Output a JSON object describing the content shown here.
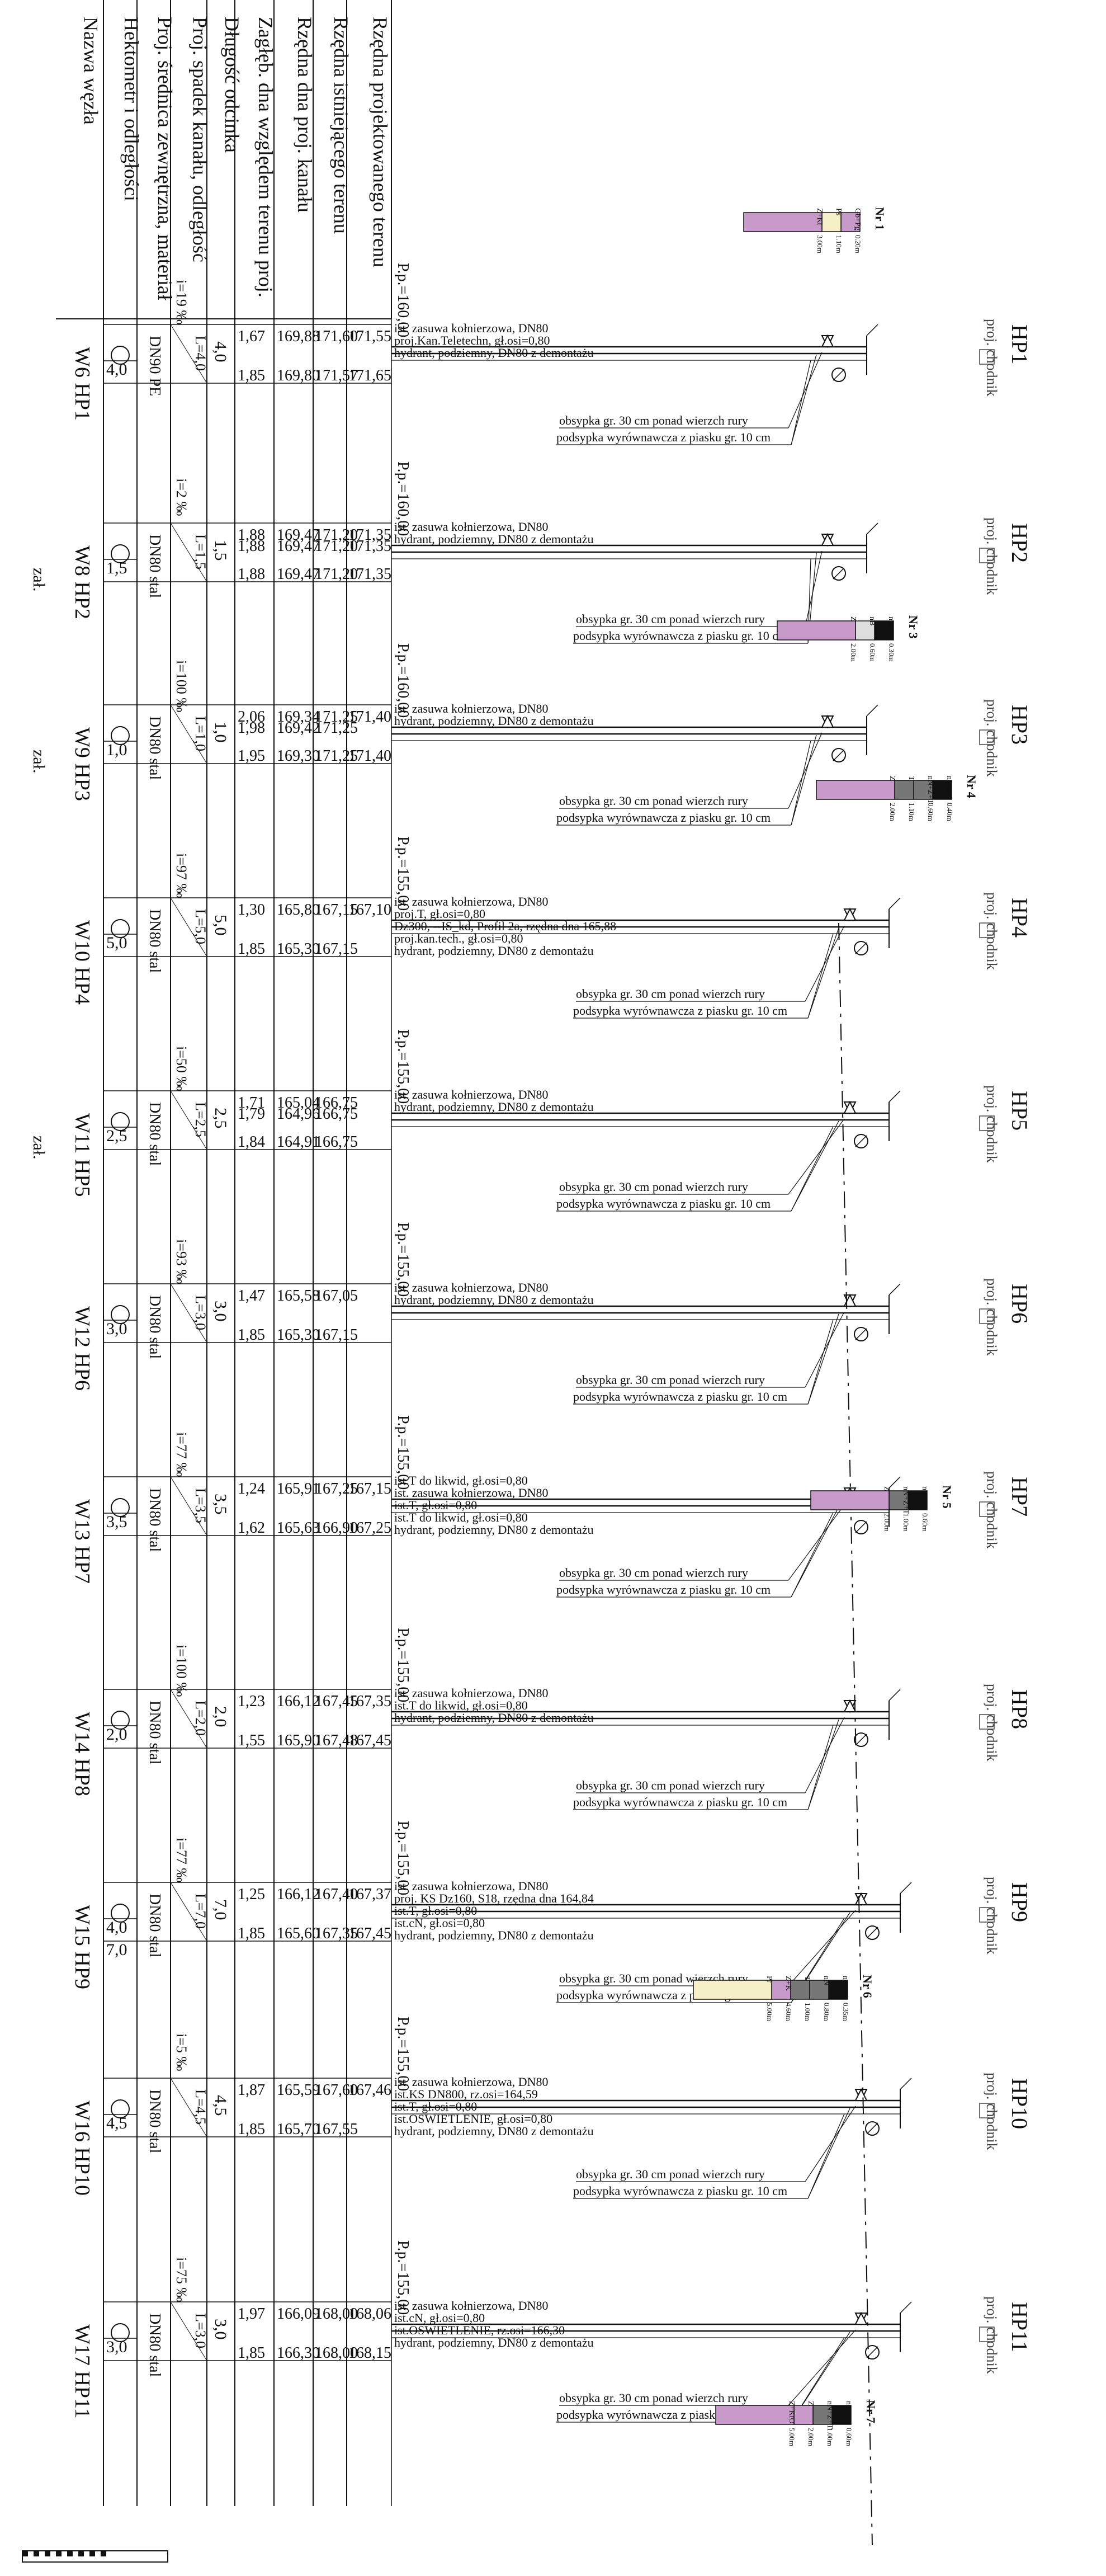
{
  "row_headers": [
    "Rzędna projektowanego terenu",
    "Rzędna istniejącego terenu",
    "Rzędna dna proj. kanału",
    "Zagłęb. dna względem terenu proj.",
    "Długość odcinka",
    "Proj. spadek kanału, odległość",
    "Proj. średnica zewnętrzna, materiał",
    "Hektometr i odległości",
    "Nazwa węzła"
  ],
  "hydrants": [
    {
      "label": "HP1",
      "node": "W6 HP1",
      "pp": "P.p.=160,00",
      "len": "4,0",
      "spadek": "i=19 ‰",
      "odl": "L=4,0",
      "mat": "DN90 PE",
      "hekto": [
        "4,0"
      ],
      "col_proj": [
        "171,55",
        "171,65"
      ],
      "col_ist": [
        "171,60",
        "171,57"
      ],
      "col_dno": [
        "169,88",
        "169,80"
      ],
      "col_zag": [
        "1,67",
        "1,85"
      ],
      "notes": [
        "ist. zasuwa kołnierzowa, DN80",
        "proj.Kan.Teletechn, gł.osi=0,80",
        "hydrant, podziemny, DN80 z demontażu"
      ]
    },
    {
      "label": "HP2",
      "node": "W8 HP2",
      "sub": "zał.",
      "pp": "P.p.=160,00",
      "len": "1,5",
      "spadek": "i=2 ‰",
      "odl": "L=1,5",
      "mat": "DN80 stal",
      "hekto": [
        "1,5"
      ],
      "col_proj": [
        "171,35",
        "171,35",
        "171,35"
      ],
      "col_ist": [
        "171,20",
        "171,20",
        "171,20"
      ],
      "col_dno": [
        "169,47",
        "169,47",
        "169,47"
      ],
      "col_zag": [
        "1,88",
        "1,88",
        "1,88"
      ],
      "notes": [
        "ist. zasuwa kołnierzowa, DN80",
        "hydrant, podziemny, DN80 z demontażu"
      ]
    },
    {
      "label": "HP3",
      "node": "W9 HP3",
      "sub": "zał.",
      "pp": "P.p.=160,00",
      "len": "1,0",
      "spadek": "i=100 ‰",
      "odl": "L=1,0",
      "mat": "DN80 stal",
      "hekto": [
        "1,0"
      ],
      "col_proj": [
        "171,40",
        "171,40"
      ],
      "col_ist": [
        "171,25",
        "171,25",
        "171,25"
      ],
      "col_dno": [
        "169,34",
        "169,42",
        "169,30"
      ],
      "col_zag": [
        "2,06",
        "1,98",
        "1,95"
      ],
      "notes": [
        "ist. zasuwa kołnierzowa, DN80",
        "hydrant, podziemny, DN80 z demontażu"
      ]
    },
    {
      "label": "HP4",
      "node": "W10 HP4",
      "pp": "P.p.=155,00",
      "len": "5,0",
      "spadek": "i=97 ‰",
      "odl": "L=5,0",
      "mat": "DN80 stal",
      "hekto": [
        "5,0"
      ],
      "col_proj": [
        "167,10"
      ],
      "col_ist": [
        "167,15",
        "167,15"
      ],
      "col_dno": [
        "165,80",
        "165,30"
      ],
      "col_zag": [
        "1,30",
        "1,85"
      ],
      "notes": [
        "ist. zasuwa kołnierzowa, DN80",
        "proj.T, gł.osi=0,80",
        "Dz300, --IS_kd, Profil 2a, rzędna dna 165,88",
        "proj.kan.tech., gł.osi=0,80",
        "hydrant, podziemny, DN80 z demontażu"
      ]
    },
    {
      "label": "HP5",
      "node": "W11 HP5",
      "sub": "zał.",
      "pp": "P.p.=155,00",
      "len": "2,5",
      "spadek": "i=50 ‰",
      "odl": "L=2,5",
      "mat": "DN80 stal",
      "hekto": [
        "2,5"
      ],
      "col_proj": [],
      "col_ist": [
        "166,75",
        "166,75",
        "166,75"
      ],
      "col_dno": [
        "165,04",
        "164,96",
        "164,91"
      ],
      "col_zag": [
        "1,71",
        "1,79",
        "1,84"
      ],
      "notes": [
        "ist. zasuwa kołnierzowa, DN80",
        "hydrant, podziemny, DN80 z demontażu"
      ]
    },
    {
      "label": "HP6",
      "node": "W12 HP6",
      "pp": "P.p.=155,00",
      "len": "3,0",
      "spadek": "i=93 ‰",
      "odl": "L=3,0",
      "mat": "DN80 stal",
      "hekto": [
        "3,0"
      ],
      "col_proj": [],
      "col_ist": [
        "167,05",
        "167,15"
      ],
      "col_dno": [
        "165,58",
        "165,30"
      ],
      "col_zag": [
        "1,47",
        "1,85"
      ],
      "notes": [
        "ist. zasuwa kołnierzowa, DN80",
        "hydrant, podziemny, DN80 z demontażu"
      ]
    },
    {
      "label": "HP7",
      "node": "W13 HP7",
      "pp": "P.p.=155,00",
      "len": "3,5",
      "spadek": "i=77 ‰",
      "odl": "L=3,5",
      "mat": "DN80 stal",
      "hekto": [
        "3,5"
      ],
      "col_proj": [
        "167,15",
        "167,25"
      ],
      "col_ist": [
        "167,25",
        "166,90"
      ],
      "col_dno": [
        "165,91",
        "165,63"
      ],
      "col_zag": [
        "1,24",
        "1,62"
      ],
      "notes": [
        "ist.T do likwid, gł.osi=0,80",
        "ist. zasuwa kołnierzowa, DN80",
        "ist.T, gł.osi=0,80",
        "ist.T do likwid, gł.osi=0,80",
        "hydrant, podziemny, DN80 z demontażu"
      ]
    },
    {
      "label": "HP8",
      "node": "W14 HP8",
      "pp": "P.p.=155,00",
      "len": "2,0",
      "spadek": "i=100 ‰",
      "odl": "L=2,0",
      "mat": "DN80 stal",
      "hekto": [
        "2,0"
      ],
      "col_proj": [
        "167,35",
        "167,45"
      ],
      "col_ist": [
        "167,45",
        "167,48"
      ],
      "col_dno": [
        "166,12",
        "165,90"
      ],
      "col_zag": [
        "1,23",
        "1,55"
      ],
      "notes": [
        "ist. zasuwa kołnierzowa, DN80",
        "ist.T do likwid, gł.osi=0,80",
        "hydrant, podziemny, DN80 z demontażu"
      ]
    },
    {
      "label": "HP9",
      "node": "W15 HP9",
      "pp": "P.p.=155,00",
      "len": "7,0",
      "spadek": "i=77 ‰",
      "odl": "L=7,0",
      "mat": "DN80 stal",
      "hekto": [
        "4,0",
        "7,0"
      ],
      "col_proj": [
        "167,37",
        "167,45"
      ],
      "col_ist": [
        "167,40",
        "167,35"
      ],
      "col_dno": [
        "166,12",
        "165,60"
      ],
      "col_zag": [
        "1,25",
        "1,85"
      ],
      "notes": [
        "ist. zasuwa kołnierzowa, DN80",
        "proj. KS Dz160, S18, rzędna dna 164,84",
        "ist.T, gł.osi=0,80",
        "ist.cN, gł.osi=0,80",
        "hydrant, podziemny, DN80 z demontażu"
      ]
    },
    {
      "label": "HP10",
      "node": "W16 HP10",
      "pp": "P.p.=155,00",
      "len": "4,5",
      "spadek": "i=5 ‰",
      "odl": "L=4,5",
      "mat": "DN80 stal",
      "hekto": [
        "4,5"
      ],
      "col_proj": [
        "167,46"
      ],
      "col_ist": [
        "167,60",
        "167,55"
      ],
      "col_dno": [
        "165,59",
        "165,70"
      ],
      "col_zag": [
        "1,87",
        "1,85"
      ],
      "notes": [
        "ist. zasuwa kołnierzowa, DN80",
        "ist.KS DN800, rz.osi=164,59",
        "ist.T, gł.osi=0,80",
        "ist.OSWIETLENIE, gł.osi=0,80",
        "hydrant, podziemny, DN80 z demontażu"
      ]
    },
    {
      "label": "HP11",
      "node": "W17 HP11",
      "pp": "P.p.=155,00",
      "len": "3,0",
      "spadek": "i=75 ‰",
      "odl": "L=3,0",
      "mat": "DN80 stal",
      "hekto": [
        "3,0"
      ],
      "col_proj": [
        "168,06",
        "168,15"
      ],
      "col_ist": [
        "168,00",
        "168,00"
      ],
      "col_dno": [
        "166,09",
        "166,30"
      ],
      "col_zag": [
        "1,97",
        "1,85"
      ],
      "notes": [
        "ist. zasuwa kołnierzowa, DN80",
        "ist.cN, gł.osi=0,80",
        "ist.OSWIETLENIE, rz.osi=166,30",
        "hydrant, podziemny, DN80 z demontażu"
      ]
    }
  ],
  "callouts": {
    "line1": "obsypka gr. 30 cm ponad wierzch rury",
    "line2": "podsypka wyrównawcza z piasku gr. 10 cm"
  },
  "right_labels": {
    "proj": "proj.",
    "chodnik": "chodnik"
  },
  "bores": [
    {
      "title": "Nr 1",
      "layers": [
        {
          "code": "Gb+Pg",
          "depth": "0.20m"
        },
        {
          "code": "Ps",
          "depth": "1.10m"
        },
        {
          "code": "Z+Kt",
          "depth": "3.00m"
        }
      ]
    },
    {
      "title": "Nr 3",
      "layers": [
        {
          "code": "nasyp",
          "depth": "0.30m"
        },
        {
          "code": "nB",
          "depth": "0.60m"
        },
        {
          "code": "Z",
          "depth": "2.00m"
        }
      ]
    },
    {
      "title": "Nr 4",
      "layers": [
        {
          "code": "nasyp",
          "depth": "0.40m"
        },
        {
          "code": "nN+Z+T",
          "depth": "0.60m"
        },
        {
          "code": "T",
          "depth": "1.10m"
        },
        {
          "code": "Z",
          "depth": "2.00m"
        }
      ]
    },
    {
      "title": "Nr 5",
      "layers": [
        {
          "code": "nasyp",
          "depth": "0.60m"
        },
        {
          "code": "nN+Z+T",
          "depth": "1.00m"
        },
        {
          "code": "Z",
          "depth": "2.00m"
        }
      ]
    },
    {
      "title": "Nr 6",
      "layers": [
        {
          "code": "nasyp",
          "depth": "0.35m"
        },
        {
          "code": "nN",
          "depth": "0.80m"
        },
        {
          "code": "T",
          "depth": "1.00m"
        },
        {
          "code": "Z+K",
          "depth": "4.60m"
        },
        {
          "code": "Pr",
          "depth": "5.00m"
        }
      ]
    },
    {
      "title": "Nr 7",
      "layers": [
        {
          "code": "nasyp",
          "depth": "0.60m"
        },
        {
          "code": "nN+Z+T",
          "depth": "1.00m"
        },
        {
          "code": "Z",
          "depth": "2.00m"
        },
        {
          "code": "Z+KtO",
          "depth": "5.00m"
        }
      ]
    }
  ],
  "colors": {
    "line": "#111111",
    "soil_clay": "#c89ac9",
    "soil_sand": "#f5f0c8",
    "fill_dark": "#111111"
  }
}
